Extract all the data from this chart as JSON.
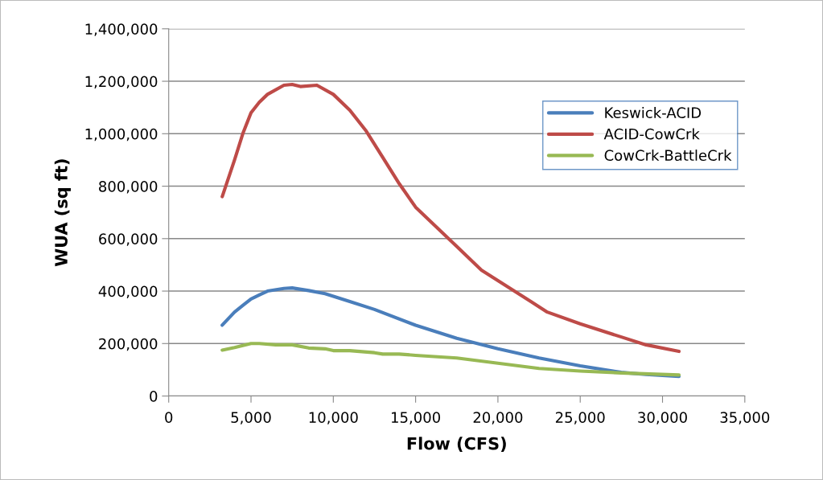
{
  "chart_data": {
    "type": "line",
    "xlabel": "Flow (CFS)",
    "ylabel": "WUA (sq ft)",
    "xlim": [
      0,
      35000
    ],
    "xticks": [
      {
        "value": 0,
        "label": "0"
      },
      {
        "value": 5000,
        "label": "5,000"
      },
      {
        "value": 10000,
        "label": "10,000"
      },
      {
        "value": 15000,
        "label": "15,000"
      },
      {
        "value": 20000,
        "label": "20,000"
      },
      {
        "value": 25000,
        "label": "25,000"
      },
      {
        "value": 30000,
        "label": "30,000"
      },
      {
        "value": 35000,
        "label": "35,000"
      }
    ],
    "ylim": [
      0,
      1400000
    ],
    "yticks": [
      {
        "value": 0,
        "label": "0"
      },
      {
        "value": 200000,
        "label": "200,000"
      },
      {
        "value": 400000,
        "label": "400,000"
      },
      {
        "value": 600000,
        "label": "600,000"
      },
      {
        "value": 800000,
        "label": "800,000"
      },
      {
        "value": 1000000,
        "label": "1,000,000"
      },
      {
        "value": 1200000,
        "label": "1,200,000"
      },
      {
        "value": 1400000,
        "label": "1,400,000"
      }
    ],
    "grid": "y",
    "legend": "right",
    "marker": "none",
    "line_style": "solid",
    "series": [
      {
        "name": "Keswick-ACID",
        "color": "#4a7ebb",
        "x": [
          3250,
          4000,
          4500,
          5000,
          5500,
          6000,
          7000,
          7500,
          8500,
          9500,
          11000,
          12500,
          15000,
          17500,
          20000,
          22500,
          25000,
          27500,
          29000,
          31000
        ],
        "values": [
          270000,
          320000,
          345000,
          370000,
          385000,
          400000,
          410000,
          412000,
          402000,
          390000,
          360000,
          330000,
          270000,
          220000,
          180000,
          145000,
          115000,
          90000,
          82000,
          75000
        ]
      },
      {
        "name": "ACID-CowCrk",
        "color": "#be4b48",
        "x": [
          3250,
          4000,
          4500,
          5000,
          5500,
          6000,
          7000,
          7500,
          8000,
          9000,
          10000,
          11000,
          12000,
          13000,
          14000,
          15000,
          17500,
          19000,
          20000,
          21000,
          22000,
          23000,
          25000,
          27500,
          29000,
          31000
        ],
        "values": [
          760000,
          900000,
          1000000,
          1080000,
          1120000,
          1150000,
          1185000,
          1188000,
          1180000,
          1185000,
          1150000,
          1090000,
          1010000,
          910000,
          810000,
          720000,
          570000,
          480000,
          440000,
          400000,
          360000,
          320000,
          275000,
          225000,
          195000,
          170000
        ]
      },
      {
        "name": "CowCrk-BattleCrk",
        "color": "#98b954",
        "x": [
          3250,
          4000,
          5000,
          5500,
          6500,
          7500,
          8500,
          9500,
          10000,
          11000,
          12500,
          13000,
          14000,
          15000,
          17500,
          20000,
          22500,
          25000,
          27500,
          31000
        ],
        "values": [
          175000,
          185000,
          200000,
          200000,
          195000,
          195000,
          183000,
          180000,
          173000,
          173000,
          165000,
          160000,
          160000,
          155000,
          145000,
          125000,
          105000,
          95000,
          88000,
          80000
        ]
      }
    ]
  }
}
